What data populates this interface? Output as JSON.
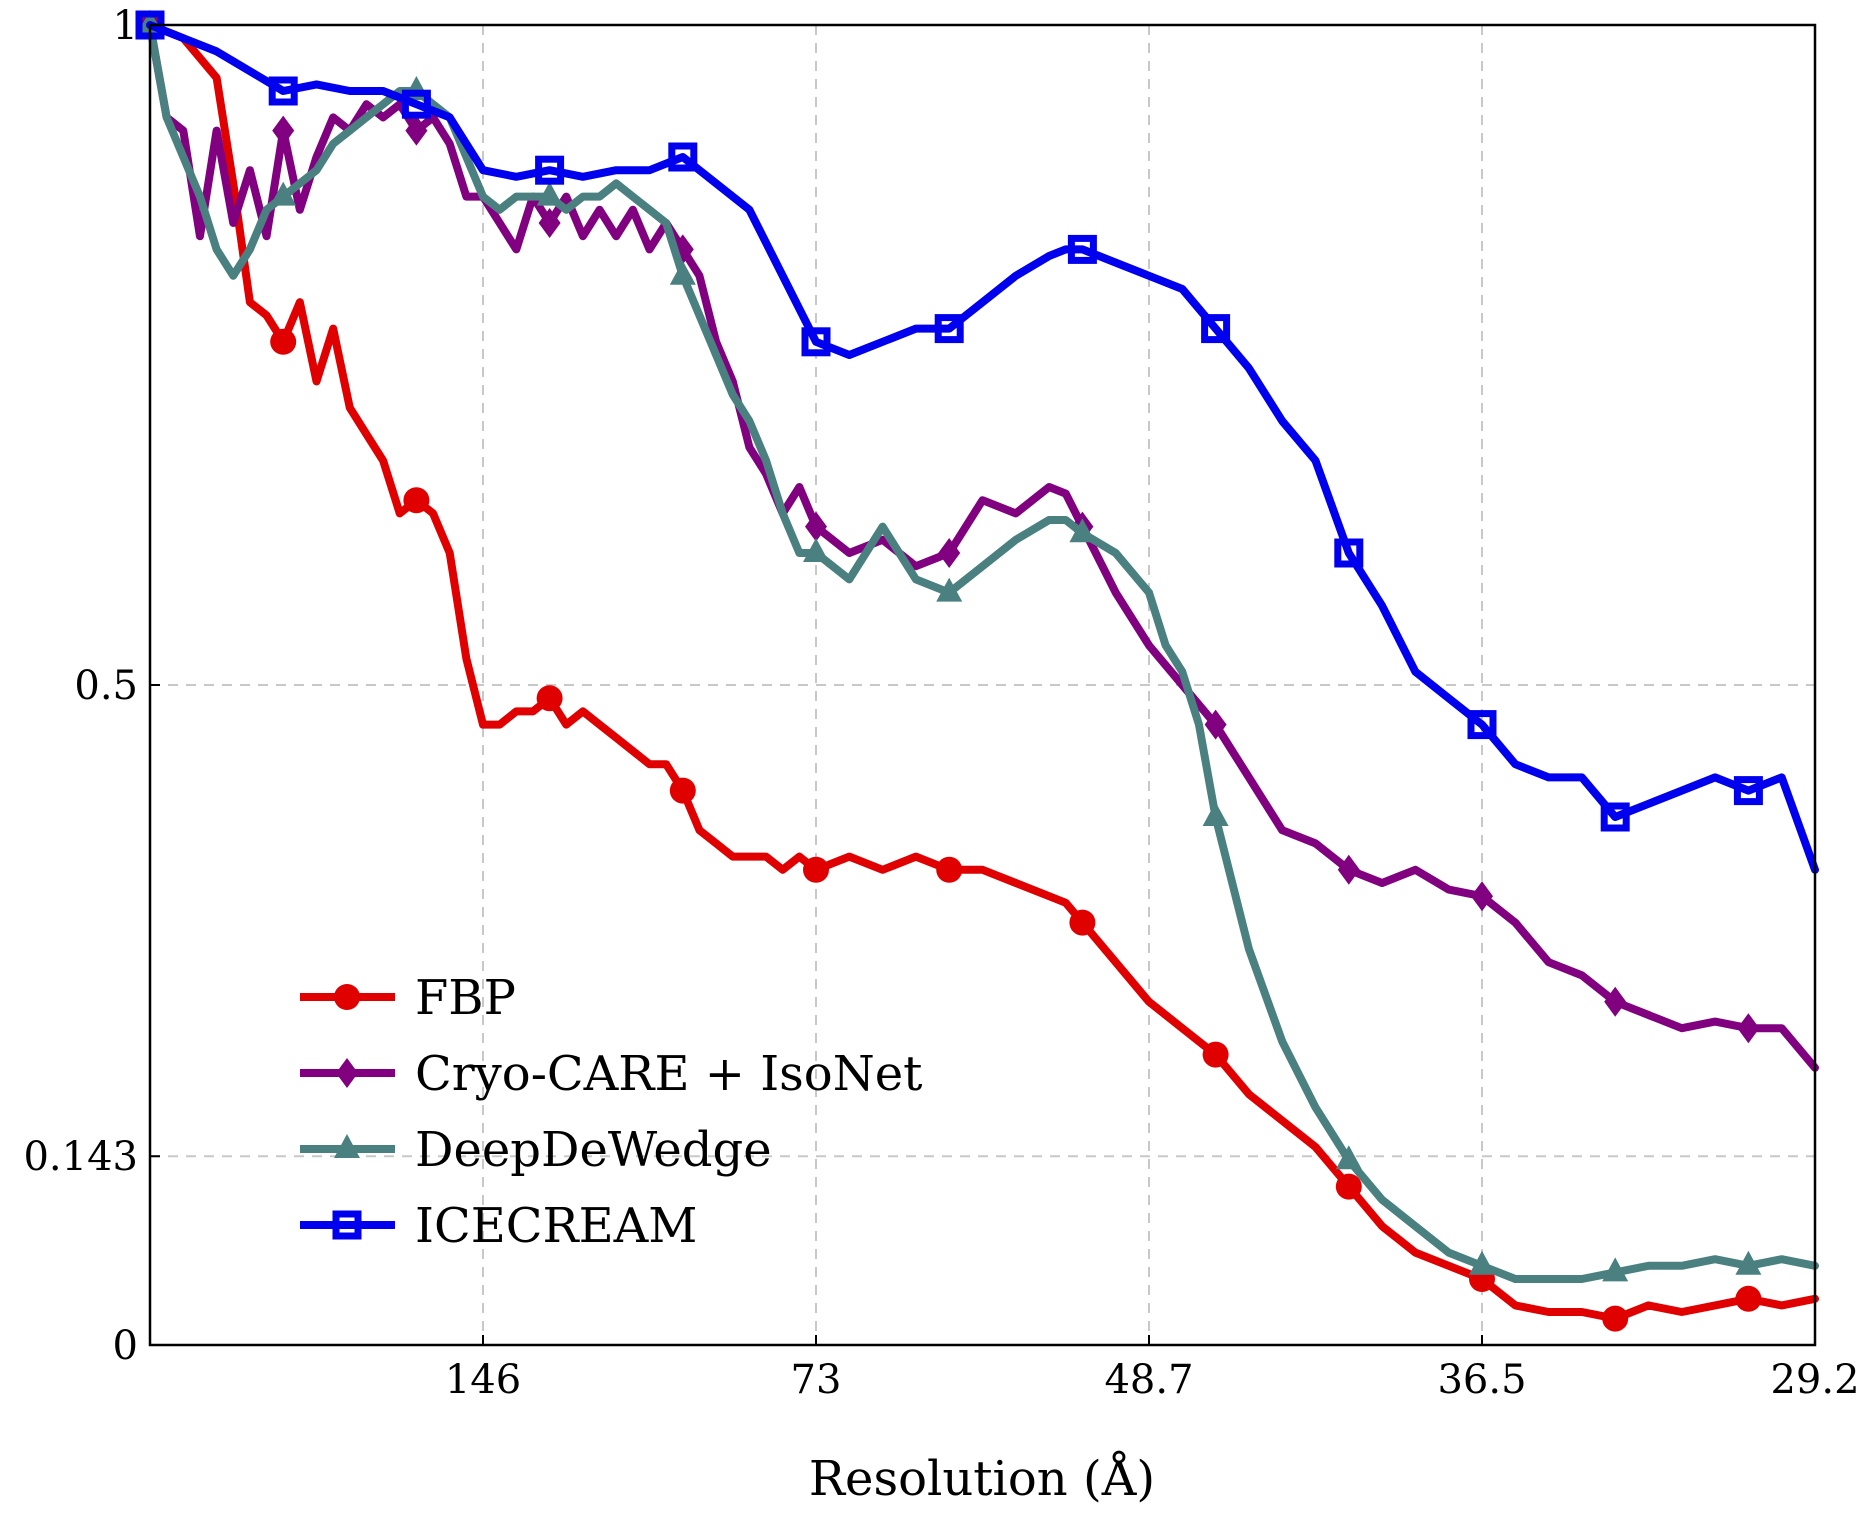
{
  "chart_data": {
    "type": "line",
    "title": "",
    "xlabel": "Resolution (Å)",
    "ylabel": "",
    "xlim": [
      0,
      100
    ],
    "ylim": [
      0,
      1
    ],
    "grid": true,
    "legend_position": "bottom-left",
    "x_ticks": [
      {
        "value": 20,
        "label": "146"
      },
      {
        "value": 40,
        "label": "73"
      },
      {
        "value": 60,
        "label": "48.7"
      },
      {
        "value": 80,
        "label": "36.5"
      },
      {
        "value": 100,
        "label": "29.2"
      }
    ],
    "y_ticks": [
      {
        "value": 0,
        "label": "0"
      },
      {
        "value": 0.143,
        "label": "0.143"
      },
      {
        "value": 0.5,
        "label": "0.5"
      },
      {
        "value": 1,
        "label": "1"
      }
    ],
    "series": [
      {
        "name": "FBP",
        "color": "#e00000",
        "marker": "circle",
        "x": [
          0,
          2,
          4,
          5,
          6,
          7,
          8,
          9,
          10,
          11,
          12,
          13,
          14,
          15,
          16,
          17,
          18,
          19,
          20,
          21,
          22,
          23,
          24,
          25,
          26,
          27,
          28,
          29,
          30,
          31,
          32,
          33,
          34,
          35,
          36,
          37,
          38,
          39,
          40,
          42,
          44,
          46,
          48,
          50,
          52,
          54,
          55,
          56,
          58,
          60,
          62,
          64,
          66,
          68,
          70,
          72,
          74,
          76,
          78,
          80,
          82,
          84,
          86,
          88,
          90,
          92,
          94,
          96,
          98,
          100
        ],
        "y": [
          1,
          0.99,
          0.96,
          0.88,
          0.79,
          0.78,
          0.76,
          0.79,
          0.73,
          0.77,
          0.71,
          0.69,
          0.67,
          0.63,
          0.64,
          0.63,
          0.6,
          0.52,
          0.47,
          0.47,
          0.48,
          0.48,
          0.49,
          0.47,
          0.48,
          0.47,
          0.46,
          0.45,
          0.44,
          0.44,
          0.42,
          0.39,
          0.38,
          0.37,
          0.37,
          0.37,
          0.36,
          0.37,
          0.36,
          0.37,
          0.36,
          0.37,
          0.36,
          0.36,
          0.35,
          0.34,
          0.335,
          0.32,
          0.29,
          0.26,
          0.24,
          0.22,
          0.19,
          0.17,
          0.15,
          0.12,
          0.09,
          0.07,
          0.06,
          0.05,
          0.03,
          0.025,
          0.025,
          0.02,
          0.03,
          0.025,
          0.03,
          0.035,
          0.03,
          0.035
        ]
      },
      {
        "name": "Cryo-CARE + IsoNet",
        "color": "#800080",
        "marker": "diamond",
        "x": [
          0,
          1,
          2,
          3,
          4,
          5,
          6,
          7,
          8,
          9,
          10,
          11,
          12,
          13,
          14,
          15,
          16,
          17,
          18,
          19,
          20,
          21,
          22,
          23,
          24,
          25,
          26,
          27,
          28,
          29,
          30,
          31,
          32,
          33,
          34,
          35,
          36,
          37,
          38,
          39,
          40,
          42,
          44,
          46,
          48,
          50,
          52,
          54,
          55,
          56,
          58,
          60,
          62,
          64,
          66,
          68,
          70,
          72,
          74,
          76,
          78,
          80,
          82,
          84,
          86,
          88,
          90,
          92,
          94,
          96,
          98,
          100
        ],
        "y": [
          1,
          0.93,
          0.92,
          0.84,
          0.92,
          0.85,
          0.89,
          0.84,
          0.92,
          0.86,
          0.9,
          0.93,
          0.92,
          0.94,
          0.93,
          0.94,
          0.92,
          0.93,
          0.91,
          0.87,
          0.87,
          0.85,
          0.83,
          0.87,
          0.85,
          0.87,
          0.84,
          0.86,
          0.84,
          0.86,
          0.83,
          0.85,
          0.83,
          0.81,
          0.76,
          0.73,
          0.68,
          0.66,
          0.63,
          0.65,
          0.62,
          0.6,
          0.61,
          0.59,
          0.6,
          0.64,
          0.63,
          0.65,
          0.645,
          0.62,
          0.57,
          0.53,
          0.5,
          0.47,
          0.43,
          0.39,
          0.38,
          0.36,
          0.35,
          0.36,
          0.345,
          0.34,
          0.32,
          0.29,
          0.28,
          0.26,
          0.25,
          0.24,
          0.245,
          0.24,
          0.24,
          0.21
        ]
      },
      {
        "name": "DeepDeWedge",
        "color": "#4a8080",
        "marker": "triangle",
        "x": [
          0,
          1,
          2,
          3,
          4,
          5,
          6,
          7,
          8,
          9,
          10,
          11,
          12,
          13,
          14,
          15,
          16,
          17,
          18,
          19,
          20,
          21,
          22,
          23,
          24,
          25,
          26,
          27,
          28,
          29,
          30,
          31,
          32,
          33,
          34,
          35,
          36,
          37,
          38,
          39,
          40,
          42,
          44,
          46,
          48,
          50,
          52,
          54,
          55,
          56,
          58,
          60,
          61,
          62,
          63,
          64,
          66,
          68,
          70,
          72,
          74,
          76,
          78,
          80,
          82,
          84,
          86,
          88,
          90,
          92,
          94,
          96,
          98,
          100
        ],
        "y": [
          1,
          0.93,
          0.9,
          0.87,
          0.83,
          0.81,
          0.83,
          0.86,
          0.87,
          0.88,
          0.89,
          0.91,
          0.92,
          0.93,
          0.94,
          0.95,
          0.95,
          0.94,
          0.93,
          0.9,
          0.87,
          0.86,
          0.87,
          0.87,
          0.87,
          0.86,
          0.87,
          0.87,
          0.88,
          0.87,
          0.86,
          0.85,
          0.81,
          0.78,
          0.75,
          0.72,
          0.7,
          0.67,
          0.63,
          0.6,
          0.6,
          0.58,
          0.62,
          0.58,
          0.57,
          0.59,
          0.61,
          0.625,
          0.625,
          0.615,
          0.6,
          0.57,
          0.53,
          0.51,
          0.47,
          0.4,
          0.3,
          0.23,
          0.18,
          0.14,
          0.11,
          0.09,
          0.07,
          0.06,
          0.05,
          0.05,
          0.05,
          0.055,
          0.06,
          0.06,
          0.065,
          0.06,
          0.065,
          0.06
        ]
      },
      {
        "name": "ICECREAM",
        "color": "#0000ee",
        "marker": "square",
        "x": [
          0,
          2,
          4,
          6,
          8,
          10,
          12,
          14,
          16,
          18,
          20,
          22,
          24,
          26,
          28,
          30,
          32,
          34,
          36,
          38,
          40,
          42,
          44,
          46,
          48,
          50,
          52,
          54,
          55,
          56,
          58,
          60,
          62,
          64,
          66,
          68,
          70,
          72,
          74,
          76,
          78,
          80,
          82,
          84,
          86,
          88,
          90,
          92,
          94,
          96,
          98,
          100
        ],
        "y": [
          1,
          0.99,
          0.98,
          0.965,
          0.95,
          0.955,
          0.95,
          0.95,
          0.94,
          0.93,
          0.89,
          0.885,
          0.89,
          0.885,
          0.89,
          0.89,
          0.9,
          0.88,
          0.86,
          0.81,
          0.76,
          0.75,
          0.76,
          0.77,
          0.77,
          0.79,
          0.81,
          0.825,
          0.83,
          0.83,
          0.82,
          0.81,
          0.8,
          0.77,
          0.74,
          0.7,
          0.67,
          0.6,
          0.56,
          0.51,
          0.49,
          0.47,
          0.44,
          0.43,
          0.43,
          0.4,
          0.41,
          0.42,
          0.43,
          0.42,
          0.43,
          0.36
        ]
      }
    ]
  },
  "legend": {
    "items": [
      "FBP",
      "Cryo-CARE + IsoNet",
      "DeepDeWedge",
      "ICECREAM"
    ]
  }
}
